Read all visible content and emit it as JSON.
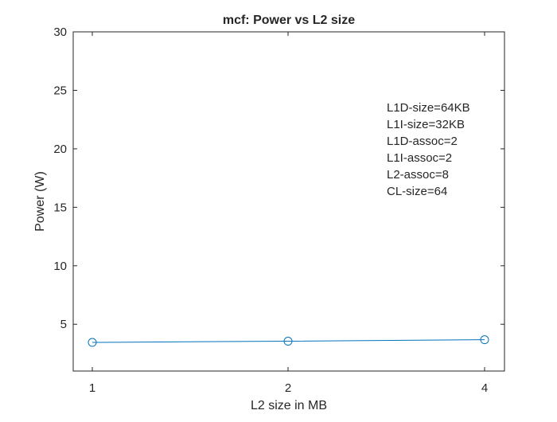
{
  "chart_data": {
    "type": "line",
    "title": "mcf: Power vs L2 size",
    "xlabel": "L2 size in MB",
    "ylabel": "Power (W)",
    "x_ticks": [
      "1",
      "2",
      "4"
    ],
    "y_ticks": [
      "5",
      "10",
      "15",
      "20",
      "25",
      "30"
    ],
    "ylim": [
      1,
      30
    ],
    "grid": false,
    "series": [
      {
        "x": [
          "1",
          "2",
          "4"
        ],
        "values": [
          3.45,
          3.55,
          3.68
        ],
        "color": "#0072BD",
        "marker": "circle"
      }
    ],
    "annotation_lines": [
      "L1D-size=64KB",
      "L1I-size=32KB",
      "L1D-assoc=2",
      "L1I-assoc=2",
      "L2-assoc=8",
      "CL-size=64"
    ]
  }
}
